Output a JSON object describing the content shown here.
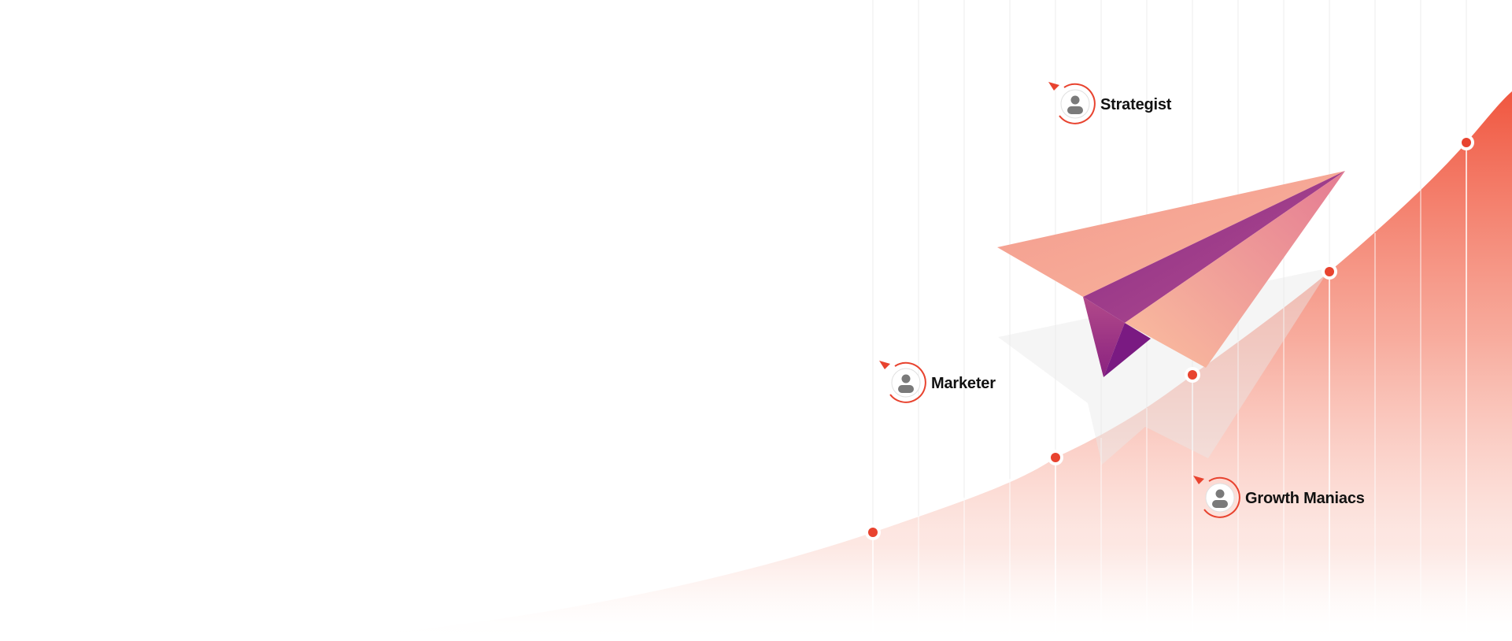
{
  "personas": [
    {
      "label": "Strategist",
      "icon": "user-icon"
    },
    {
      "label": "Marketer",
      "icon": "user-icon"
    },
    {
      "label": "Growth Maniacs",
      "icon": "user-icon"
    }
  ],
  "colors": {
    "accent": "#e8432f",
    "curve_top": "#f0563f",
    "curve_fade": "#ffffff",
    "plane_light": "#f5a592",
    "plane_purple": "#7d1e83",
    "label_text": "#111111",
    "avatar_fill": "#7a7a7a"
  }
}
